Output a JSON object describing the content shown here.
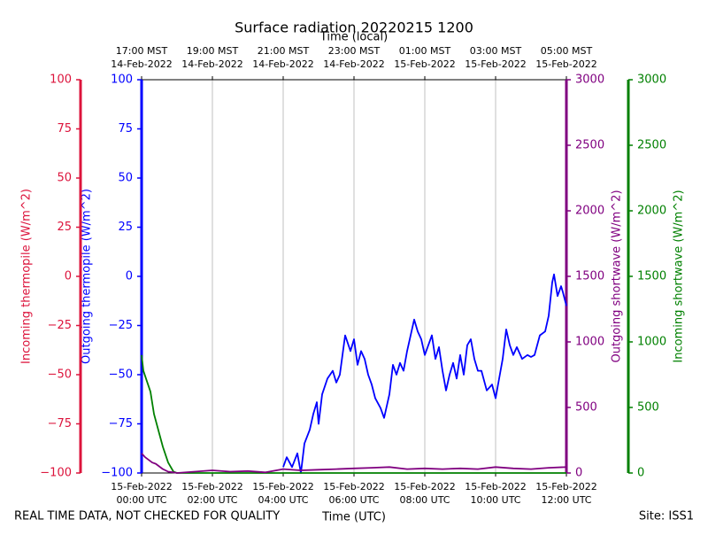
{
  "chart_data": {
    "type": "line",
    "title": "Surface radiation 20220215 1200",
    "xlabel": "Time (UTC)",
    "x2label": "Time (local)",
    "footer_left": "REAL TIME DATA, NOT CHECKED FOR QUALITY",
    "footer_right": "Site: ISS1",
    "xlim": [
      0,
      12
    ],
    "grid": true,
    "xticks": [
      {
        "value": 0,
        "label": [
          "15-Feb-2022",
          "00:00 UTC"
        ]
      },
      {
        "value": 2,
        "label": [
          "15-Feb-2022",
          "02:00 UTC"
        ]
      },
      {
        "value": 4,
        "label": [
          "15-Feb-2022",
          "04:00 UTC"
        ]
      },
      {
        "value": 6,
        "label": [
          "15-Feb-2022",
          "06:00 UTC"
        ]
      },
      {
        "value": 8,
        "label": [
          "15-Feb-2022",
          "08:00 UTC"
        ]
      },
      {
        "value": 10,
        "label": [
          "15-Feb-2022",
          "10:00 UTC"
        ]
      },
      {
        "value": 12,
        "label": [
          "15-Feb-2022",
          "12:00 UTC"
        ]
      }
    ],
    "x2ticks": [
      {
        "value": 0,
        "label": [
          "17:00 MST",
          "14-Feb-2022"
        ]
      },
      {
        "value": 2,
        "label": [
          "19:00 MST",
          "14-Feb-2022"
        ]
      },
      {
        "value": 4,
        "label": [
          "21:00 MST",
          "14-Feb-2022"
        ]
      },
      {
        "value": 6,
        "label": [
          "23:00 MST",
          "14-Feb-2022"
        ]
      },
      {
        "value": 8,
        "label": [
          "01:00 MST",
          "15-Feb-2022"
        ]
      },
      {
        "value": 10,
        "label": [
          "03:00 MST",
          "15-Feb-2022"
        ]
      },
      {
        "value": 12,
        "label": [
          "05:00 MST",
          "15-Feb-2022"
        ]
      }
    ],
    "axes": [
      {
        "label": "Outgoing thermopile (W/m^2)",
        "color": "#0000ff",
        "side": "left",
        "lim": [
          -100,
          100
        ],
        "ticks": [
          {
            "value": -100,
            "label": "−100"
          },
          {
            "value": -75,
            "label": "−75"
          },
          {
            "value": -50,
            "label": "−50"
          },
          {
            "value": -25,
            "label": "−25"
          },
          0,
          25,
          50,
          75,
          100
        ]
      },
      {
        "label": "Incoming thermopile (W/m^2)",
        "color": "#dc143c",
        "side": "left",
        "lim": [
          -100,
          100
        ],
        "ticks": [
          {
            "value": -100,
            "label": "−100"
          },
          {
            "value": -75,
            "label": "−75"
          },
          {
            "value": -50,
            "label": "−50"
          },
          {
            "value": -25,
            "label": "−25"
          },
          0,
          25,
          50,
          75,
          100
        ]
      },
      {
        "label": "Outgoing shortwave (W/m^2)",
        "color": "#800080",
        "side": "right",
        "lim": [
          0,
          3000
        ],
        "ticks": [
          0,
          500,
          1000,
          1500,
          2000,
          2500,
          3000
        ]
      },
      {
        "label": "Incoming shortwave (W/m^2)",
        "color": "#008000",
        "side": "right",
        "lim": [
          0,
          3000
        ],
        "ticks": [
          0,
          500,
          1000,
          1500,
          2000,
          2500,
          3000
        ]
      }
    ],
    "series": [
      {
        "name": "Outgoing thermopile",
        "axis": 0,
        "color": "#0000ff",
        "x": [
          4.0,
          4.1,
          4.25,
          4.4,
          4.5,
          4.6,
          4.75,
          4.85,
          4.95,
          5.0,
          5.1,
          5.25,
          5.4,
          5.5,
          5.6,
          5.75,
          5.9,
          6.0,
          6.1,
          6.2,
          6.3,
          6.4,
          6.5,
          6.6,
          6.75,
          6.85,
          7.0,
          7.1,
          7.2,
          7.3,
          7.4,
          7.5,
          7.6,
          7.7,
          7.8,
          7.9,
          8.0,
          8.1,
          8.2,
          8.3,
          8.4,
          8.5,
          8.6,
          8.7,
          8.8,
          8.9,
          9.0,
          9.1,
          9.2,
          9.3,
          9.4,
          9.5,
          9.6,
          9.75,
          9.9,
          10.0,
          10.1,
          10.2,
          10.3,
          10.4,
          10.5,
          10.6,
          10.75,
          10.9,
          11.0,
          11.1,
          11.25,
          11.4,
          11.5,
          11.6,
          11.65,
          11.75,
          11.85,
          11.9,
          12.0
        ],
        "values": [
          -97,
          -92,
          -97,
          -90,
          -100,
          -85,
          -78,
          -70,
          -64,
          -75,
          -60,
          -52,
          -48,
          -54,
          -50,
          -30,
          -38,
          -32,
          -45,
          -38,
          -42,
          -50,
          -55,
          -62,
          -67,
          -72,
          -60,
          -45,
          -50,
          -44,
          -48,
          -38,
          -30,
          -22,
          -28,
          -32,
          -40,
          -35,
          -30,
          -42,
          -36,
          -48,
          -58,
          -50,
          -44,
          -52,
          -40,
          -50,
          -35,
          -32,
          -42,
          -48,
          -48,
          -58,
          -55,
          -62,
          -52,
          -42,
          -27,
          -35,
          -40,
          -36,
          -42,
          -40,
          -41,
          -40,
          -30,
          -28,
          -20,
          -3,
          1,
          -10,
          -5,
          -8,
          -15
        ]
      },
      {
        "name": "Incoming shortwave",
        "axis": 3,
        "color": "#008000",
        "x": [
          0,
          0.05,
          0.15,
          0.25,
          0.35,
          0.5,
          0.6,
          0.75,
          0.9,
          1.0,
          12
        ],
        "values": [
          900,
          780,
          700,
          620,
          450,
          300,
          200,
          80,
          10,
          0,
          0
        ]
      },
      {
        "name": "Outgoing shortwave",
        "axis": 2,
        "color": "#800080",
        "x": [
          0,
          0.1,
          0.2,
          0.3,
          0.4,
          0.5,
          0.6,
          0.75,
          0.9,
          1.0,
          1.5,
          2.0,
          2.5,
          3.0,
          3.5,
          4.0,
          4.5,
          5.0,
          5.5,
          6.0,
          6.5,
          7.0,
          7.5,
          8.0,
          8.5,
          9.0,
          9.5,
          10.0,
          10.5,
          11.0,
          11.5,
          12.0
        ],
        "values": [
          150,
          120,
          100,
          80,
          70,
          50,
          30,
          10,
          5,
          0,
          10,
          20,
          10,
          15,
          5,
          30,
          20,
          25,
          30,
          35,
          40,
          45,
          30,
          35,
          30,
          35,
          30,
          45,
          35,
          30,
          40,
          45
        ]
      }
    ]
  }
}
